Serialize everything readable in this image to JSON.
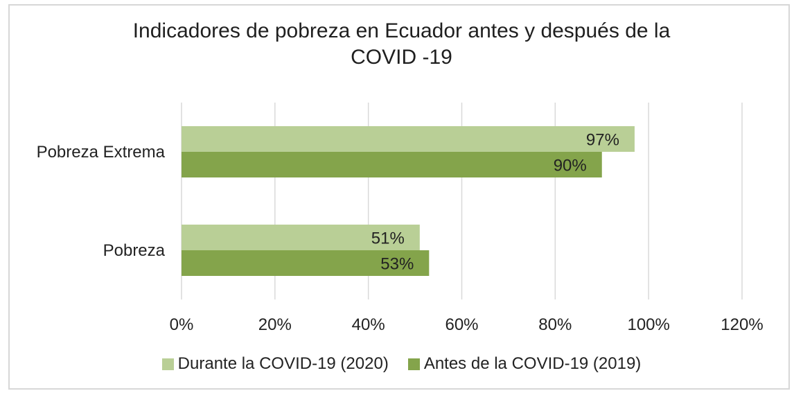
{
  "chart_data": {
    "type": "bar",
    "orientation": "horizontal",
    "title_lines": [
      "Indicadores de pobreza en Ecuador antes y después de la",
      "COVID -19"
    ],
    "categories": [
      "Pobreza Extrema",
      "Pobreza"
    ],
    "series": [
      {
        "name": "Durante la COVID-19 (2020)",
        "color": "#b9cf96",
        "values": [
          97,
          51
        ],
        "labels": [
          "97%",
          "51%"
        ]
      },
      {
        "name": "Antes de la COVID-19 (2019)",
        "color": "#84a44b",
        "values": [
          90,
          53
        ],
        "labels": [
          "90%",
          "53%"
        ]
      }
    ],
    "xlim": [
      0,
      120
    ],
    "xticks": [
      0,
      20,
      40,
      60,
      80,
      100,
      120
    ],
    "xtick_labels": [
      "0%",
      "20%",
      "40%",
      "60%",
      "80%",
      "100%",
      "120%"
    ],
    "grid": true,
    "legend_position": "bottom",
    "xlabel": "",
    "ylabel": ""
  }
}
